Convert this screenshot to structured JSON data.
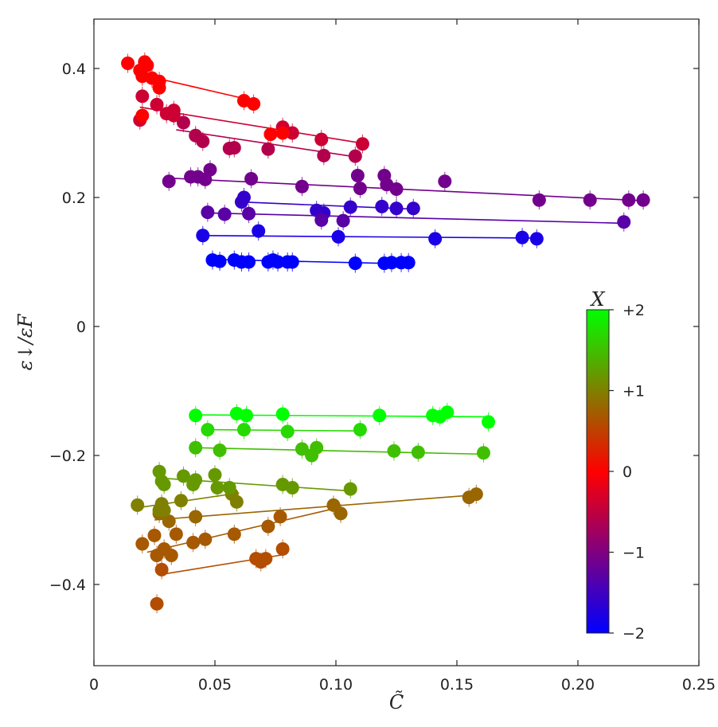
{
  "chart_data": {
    "type": "scatter",
    "xlabel": "C̃",
    "ylabel": "ε↓/εF",
    "xlim": [
      0,
      0.25
    ],
    "ylim": [
      -0.52,
      0.47
    ],
    "x_ticks": [
      0,
      0.05,
      0.1,
      0.15,
      0.2,
      0.25
    ],
    "x_tick_labels": [
      "0",
      "0.05",
      "0.10",
      "0.15",
      "0.20",
      "0.25"
    ],
    "y_ticks": [
      0.4,
      0.2,
      0,
      -0.2,
      -0.4
    ],
    "y_tick_labels": [
      "0.4",
      "0.2",
      "0",
      "−0.2",
      "−0.4"
    ],
    "colorbar": {
      "label": "X",
      "range": [
        -2,
        2
      ],
      "ticks": [
        2,
        1,
        0,
        -1,
        -2
      ],
      "tick_labels": [
        "+2",
        "+1",
        "0",
        "−1",
        "−2"
      ],
      "colors": {
        "-2": "#0000ff",
        "0": "#ff0000",
        "2": "#00ff00"
      }
    },
    "series": [
      {
        "X": -2.0,
        "points": [
          [
            0.049,
            0.103
          ],
          [
            0.052,
            0.101
          ],
          [
            0.058,
            0.103
          ],
          [
            0.061,
            0.1
          ],
          [
            0.064,
            0.1
          ],
          [
            0.072,
            0.1
          ],
          [
            0.074,
            0.103
          ],
          [
            0.076,
            0.1
          ],
          [
            0.08,
            0.1
          ],
          [
            0.082,
            0.1
          ],
          [
            0.108,
            0.098
          ],
          [
            0.12,
            0.098
          ],
          [
            0.123,
            0.099
          ],
          [
            0.127,
            0.099
          ],
          [
            0.13,
            0.099
          ]
        ],
        "fit": [
          [
            0.049,
            0.104
          ],
          [
            0.13,
            0.097
          ]
        ]
      },
      {
        "X": -1.8,
        "points": [
          [
            0.045,
            0.141
          ],
          [
            0.068,
            0.148
          ],
          [
            0.101,
            0.139
          ],
          [
            0.141,
            0.136
          ],
          [
            0.177,
            0.138
          ],
          [
            0.183,
            0.136
          ]
        ],
        "fit": [
          [
            0.045,
            0.141
          ],
          [
            0.183,
            0.137
          ]
        ]
      },
      {
        "X": -1.6,
        "points": [
          [
            0.061,
            0.193
          ],
          [
            0.062,
            0.2
          ],
          [
            0.092,
            0.18
          ],
          [
            0.095,
            0.176
          ],
          [
            0.106,
            0.185
          ],
          [
            0.119,
            0.186
          ],
          [
            0.125,
            0.183
          ],
          [
            0.132,
            0.183
          ]
        ],
        "fit": [
          [
            0.061,
            0.193
          ],
          [
            0.132,
            0.182
          ]
        ]
      },
      {
        "X": -1.3,
        "points": [
          [
            0.047,
            0.177
          ],
          [
            0.054,
            0.174
          ],
          [
            0.064,
            0.175
          ],
          [
            0.094,
            0.165
          ],
          [
            0.103,
            0.164
          ],
          [
            0.219,
            0.162
          ]
        ],
        "fit": [
          [
            0.047,
            0.176
          ],
          [
            0.219,
            0.16
          ]
        ]
      },
      {
        "X": -1.1,
        "points": [
          [
            0.031,
            0.225
          ],
          [
            0.04,
            0.232
          ],
          [
            0.043,
            0.232
          ],
          [
            0.046,
            0.228
          ],
          [
            0.048,
            0.243
          ],
          [
            0.065,
            0.229
          ],
          [
            0.086,
            0.217
          ],
          [
            0.109,
            0.234
          ],
          [
            0.11,
            0.214
          ],
          [
            0.12,
            0.234
          ],
          [
            0.121,
            0.22
          ],
          [
            0.125,
            0.213
          ],
          [
            0.145,
            0.225
          ],
          [
            0.184,
            0.196
          ],
          [
            0.205,
            0.196
          ],
          [
            0.221,
            0.196
          ],
          [
            0.227,
            0.196
          ]
        ],
        "fit": [
          [
            0.031,
            0.23
          ],
          [
            0.227,
            0.195
          ]
        ]
      },
      {
        "X": -0.6,
        "points": [
          [
            0.037,
            0.316
          ],
          [
            0.042,
            0.296
          ],
          [
            0.045,
            0.287
          ],
          [
            0.056,
            0.276
          ],
          [
            0.058,
            0.277
          ],
          [
            0.072,
            0.275
          ],
          [
            0.095,
            0.265
          ],
          [
            0.108,
            0.264
          ]
        ],
        "fit": [
          [
            0.034,
            0.305
          ],
          [
            0.108,
            0.263
          ]
        ]
      },
      {
        "X": -0.4,
        "points": [
          [
            0.019,
            0.32
          ],
          [
            0.02,
            0.357
          ],
          [
            0.026,
            0.344
          ],
          [
            0.03,
            0.33
          ],
          [
            0.033,
            0.327
          ],
          [
            0.033,
            0.335
          ],
          [
            0.078,
            0.309
          ],
          [
            0.082,
            0.3
          ],
          [
            0.094,
            0.29
          ],
          [
            0.111,
            0.283
          ]
        ],
        "fit": [
          [
            0.019,
            0.34
          ],
          [
            0.111,
            0.284
          ]
        ]
      },
      {
        "X": 0.0,
        "points": [
          [
            0.014,
            0.408
          ],
          [
            0.019,
            0.397
          ],
          [
            0.02,
            0.388
          ],
          [
            0.021,
            0.41
          ],
          [
            0.022,
            0.405
          ],
          [
            0.024,
            0.385
          ],
          [
            0.027,
            0.37
          ],
          [
            0.027,
            0.38
          ],
          [
            0.062,
            0.35
          ],
          [
            0.066,
            0.345
          ],
          [
            0.073,
            0.298
          ],
          [
            0.078,
            0.3
          ],
          [
            0.02,
            0.327
          ]
        ],
        "fit": [
          [
            0.02,
            0.39
          ],
          [
            0.066,
            0.35
          ]
        ]
      },
      {
        "X": 0.6,
        "points": [
          [
            0.026,
            -0.43
          ],
          [
            0.028,
            -0.377
          ],
          [
            0.067,
            -0.36
          ],
          [
            0.069,
            -0.365
          ],
          [
            0.071,
            -0.36
          ],
          [
            0.078,
            -0.345
          ]
        ],
        "fit": [
          [
            0.027,
            -0.385
          ],
          [
            0.078,
            -0.354
          ]
        ]
      },
      {
        "X": 0.7,
        "points": [
          [
            0.02,
            -0.337
          ],
          [
            0.025,
            -0.324
          ],
          [
            0.026,
            -0.355
          ],
          [
            0.029,
            -0.345
          ],
          [
            0.032,
            -0.355
          ],
          [
            0.034,
            -0.322
          ],
          [
            0.041,
            -0.335
          ],
          [
            0.046,
            -0.33
          ],
          [
            0.058,
            -0.322
          ],
          [
            0.072,
            -0.31
          ],
          [
            0.077,
            -0.295
          ]
        ],
        "fit": [
          [
            0.022,
            -0.35
          ],
          [
            0.102,
            -0.28
          ]
        ]
      },
      {
        "X": 0.8,
        "points": [
          [
            0.027,
            -0.29
          ],
          [
            0.031,
            -0.302
          ],
          [
            0.042,
            -0.295
          ],
          [
            0.099,
            -0.277
          ],
          [
            0.102,
            -0.29
          ],
          [
            0.155,
            -0.265
          ],
          [
            0.158,
            -0.26
          ]
        ],
        "fit": [
          [
            0.025,
            -0.3
          ],
          [
            0.158,
            -0.261
          ]
        ]
      },
      {
        "X": 1.0,
        "points": [
          [
            0.018,
            -0.277
          ],
          [
            0.027,
            -0.285
          ],
          [
            0.028,
            -0.275
          ],
          [
            0.029,
            -0.285
          ],
          [
            0.036,
            -0.27
          ],
          [
            0.057,
            -0.26
          ],
          [
            0.059,
            -0.272
          ]
        ],
        "fit": [
          [
            0.02,
            -0.28
          ],
          [
            0.06,
            -0.258
          ]
        ]
      },
      {
        "X": 1.2,
        "points": [
          [
            0.027,
            -0.225
          ],
          [
            0.028,
            -0.24
          ],
          [
            0.029,
            -0.245
          ],
          [
            0.037,
            -0.232
          ],
          [
            0.041,
            -0.245
          ],
          [
            0.042,
            -0.238
          ],
          [
            0.05,
            -0.23
          ],
          [
            0.051,
            -0.25
          ],
          [
            0.056,
            -0.25
          ],
          [
            0.078,
            -0.245
          ],
          [
            0.082,
            -0.25
          ],
          [
            0.106,
            -0.252
          ]
        ],
        "fit": [
          [
            0.027,
            -0.235
          ],
          [
            0.106,
            -0.255
          ]
        ]
      },
      {
        "X": 1.5,
        "points": [
          [
            0.042,
            -0.188
          ],
          [
            0.052,
            -0.192
          ],
          [
            0.086,
            -0.19
          ],
          [
            0.09,
            -0.2
          ],
          [
            0.092,
            -0.188
          ],
          [
            0.124,
            -0.193
          ],
          [
            0.134,
            -0.195
          ],
          [
            0.161,
            -0.196
          ]
        ],
        "fit": [
          [
            0.042,
            -0.188
          ],
          [
            0.161,
            -0.198
          ]
        ]
      },
      {
        "X": 1.7,
        "points": [
          [
            0.047,
            -0.16
          ],
          [
            0.062,
            -0.16
          ],
          [
            0.08,
            -0.163
          ],
          [
            0.11,
            -0.16
          ]
        ],
        "fit": [
          [
            0.047,
            -0.16
          ],
          [
            0.11,
            -0.162
          ]
        ]
      },
      {
        "X": 2.0,
        "points": [
          [
            0.042,
            -0.138
          ],
          [
            0.059,
            -0.135
          ],
          [
            0.063,
            -0.138
          ],
          [
            0.078,
            -0.136
          ],
          [
            0.118,
            -0.138
          ],
          [
            0.14,
            -0.138
          ],
          [
            0.143,
            -0.14
          ],
          [
            0.146,
            -0.133
          ],
          [
            0.163,
            -0.148
          ]
        ],
        "fit": [
          [
            0.042,
            -0.137
          ],
          [
            0.163,
            -0.14
          ]
        ]
      }
    ]
  }
}
